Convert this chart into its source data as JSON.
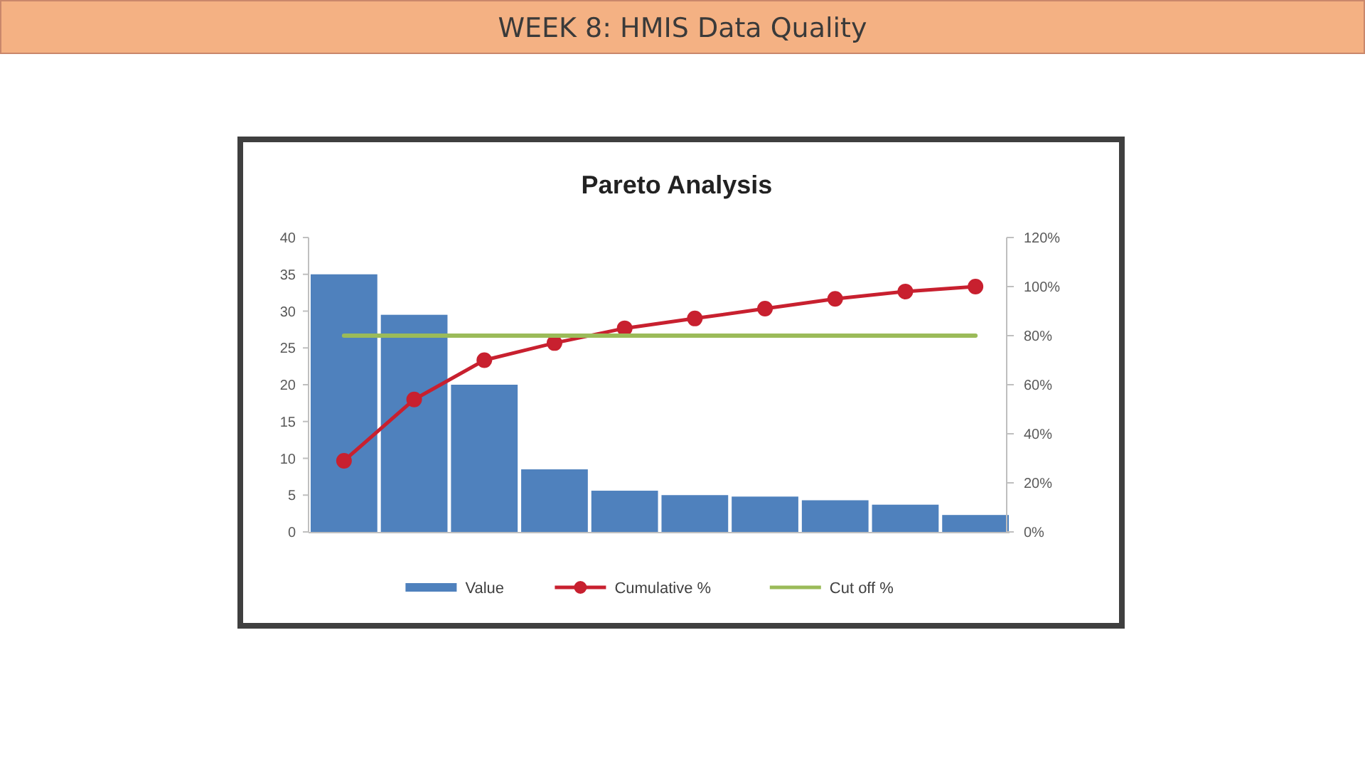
{
  "chart_data": {
    "type": "bar",
    "title": "Pareto Analysis",
    "annotations": [
      "WEEK 8: HMIS Data Quality"
    ],
    "categories": [
      null,
      null,
      null,
      null,
      null,
      null,
      null,
      null,
      null,
      null
    ],
    "series": [
      {
        "name": "Value",
        "color": "#4f81bd",
        "values": [
          35,
          29.5,
          20,
          8.5,
          5.6,
          5,
          4.8,
          4.3,
          3.7,
          2.3
        ]
      },
      {
        "name": "Cumulative %",
        "type": "line",
        "axis": "y2",
        "color": "#c8202f",
        "marker": "circle",
        "values": [
          29,
          54,
          70,
          77,
          83,
          87,
          91,
          95,
          98,
          100
        ]
      },
      {
        "name": "Cut off %",
        "type": "line",
        "axis": "y2",
        "color": "#9bbb59",
        "marker": "none",
        "values": [
          80,
          80,
          80,
          80,
          80,
          80,
          80,
          80,
          80,
          80
        ]
      }
    ],
    "ylim": [
      0,
      40
    ],
    "yticks": [
      0,
      5,
      10,
      15,
      20,
      25,
      30,
      35,
      40
    ],
    "y2lim": [
      0,
      120
    ],
    "y2ticks": [
      {
        "value": 0,
        "label": "0%"
      },
      {
        "value": 20,
        "label": "20%"
      },
      {
        "value": 40,
        "label": "40%"
      },
      {
        "value": 60,
        "label": "60%"
      },
      {
        "value": 80,
        "label": "80%"
      },
      {
        "value": 100,
        "label": "100%"
      },
      {
        "value": 120,
        "label": "120%"
      }
    ],
    "legend": "bottom",
    "grid": false
  }
}
